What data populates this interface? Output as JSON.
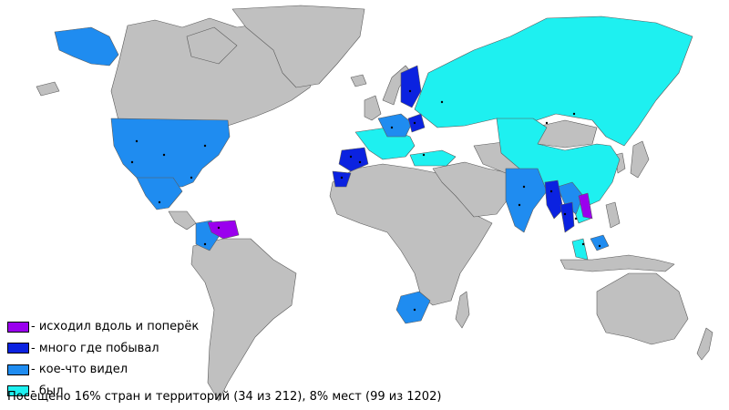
{
  "colors": {
    "not_visited": "#c0c0c0",
    "ocean": "#ffffff",
    "border": "#5a5a5a",
    "city_dot": "#000000"
  },
  "legend": {
    "items": [
      {
        "key": "explored",
        "label": "- исходил вдоль и поперёк",
        "color": "#9a00ee"
      },
      {
        "key": "much",
        "label": "- много где побывал",
        "color": "#0b22e0"
      },
      {
        "key": "some",
        "label": "- кое-что видел",
        "color": "#1f8cf0"
      },
      {
        "key": "been",
        "label": "- был",
        "color": "#1ef0f0"
      }
    ]
  },
  "summary": "Посещено 16% стран и территорий (34 из 212), 8% мест (99 из 1202)"
}
